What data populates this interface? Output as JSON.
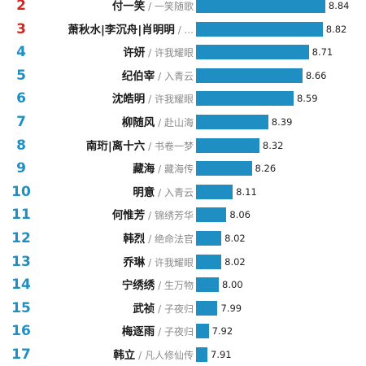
{
  "chart_data": {
    "type": "bar",
    "orientation": "horizontal",
    "ranks": [
      "2",
      "3",
      "4",
      "5",
      "6",
      "7",
      "8",
      "9",
      "10",
      "11",
      "12",
      "13",
      "14",
      "15",
      "16",
      "17"
    ],
    "categories": [
      "付一笑",
      "萧秋水|李沉舟|肖明明",
      "许妍",
      "纪伯宰",
      "沈皓明",
      "柳随风",
      "南珩|离十六",
      "藏海",
      "明意",
      "何惟芳",
      "韩烈",
      "乔琳",
      "宁绣绣",
      "武祯",
      "梅逐雨",
      "韩立"
    ],
    "works": [
      "一笑随歌",
      "...",
      "许我耀眼",
      "入青云",
      "许我耀眼",
      "赴山海",
      "书卷一梦",
      "藏海传",
      "入青云",
      "锦绣芳华",
      "绝命法官",
      "许我耀眼",
      "生万物",
      "子夜归",
      "子夜归",
      "凡人修仙传"
    ],
    "values": [
      8.84,
      8.82,
      8.71,
      8.66,
      8.59,
      8.39,
      8.32,
      8.26,
      8.11,
      8.06,
      8.02,
      8.02,
      8.0,
      7.99,
      7.92,
      7.91
    ],
    "value_labels": [
      "8.84",
      "8.82",
      "8.71",
      "8.66",
      "8.59",
      "8.39",
      "8.32",
      "8.26",
      "8.11",
      "8.06",
      "8.02",
      "8.02",
      "8.00",
      "7.99",
      "7.92",
      "7.91"
    ],
    "separator": " / ",
    "xlim": [
      7.82,
      8.86
    ],
    "colors": {
      "bar": "#1f8fc3",
      "rank_top": "#d7261e",
      "rank_other": "#1f8fc3"
    },
    "top_rank_count": 2,
    "grid": false,
    "legend": "none"
  }
}
